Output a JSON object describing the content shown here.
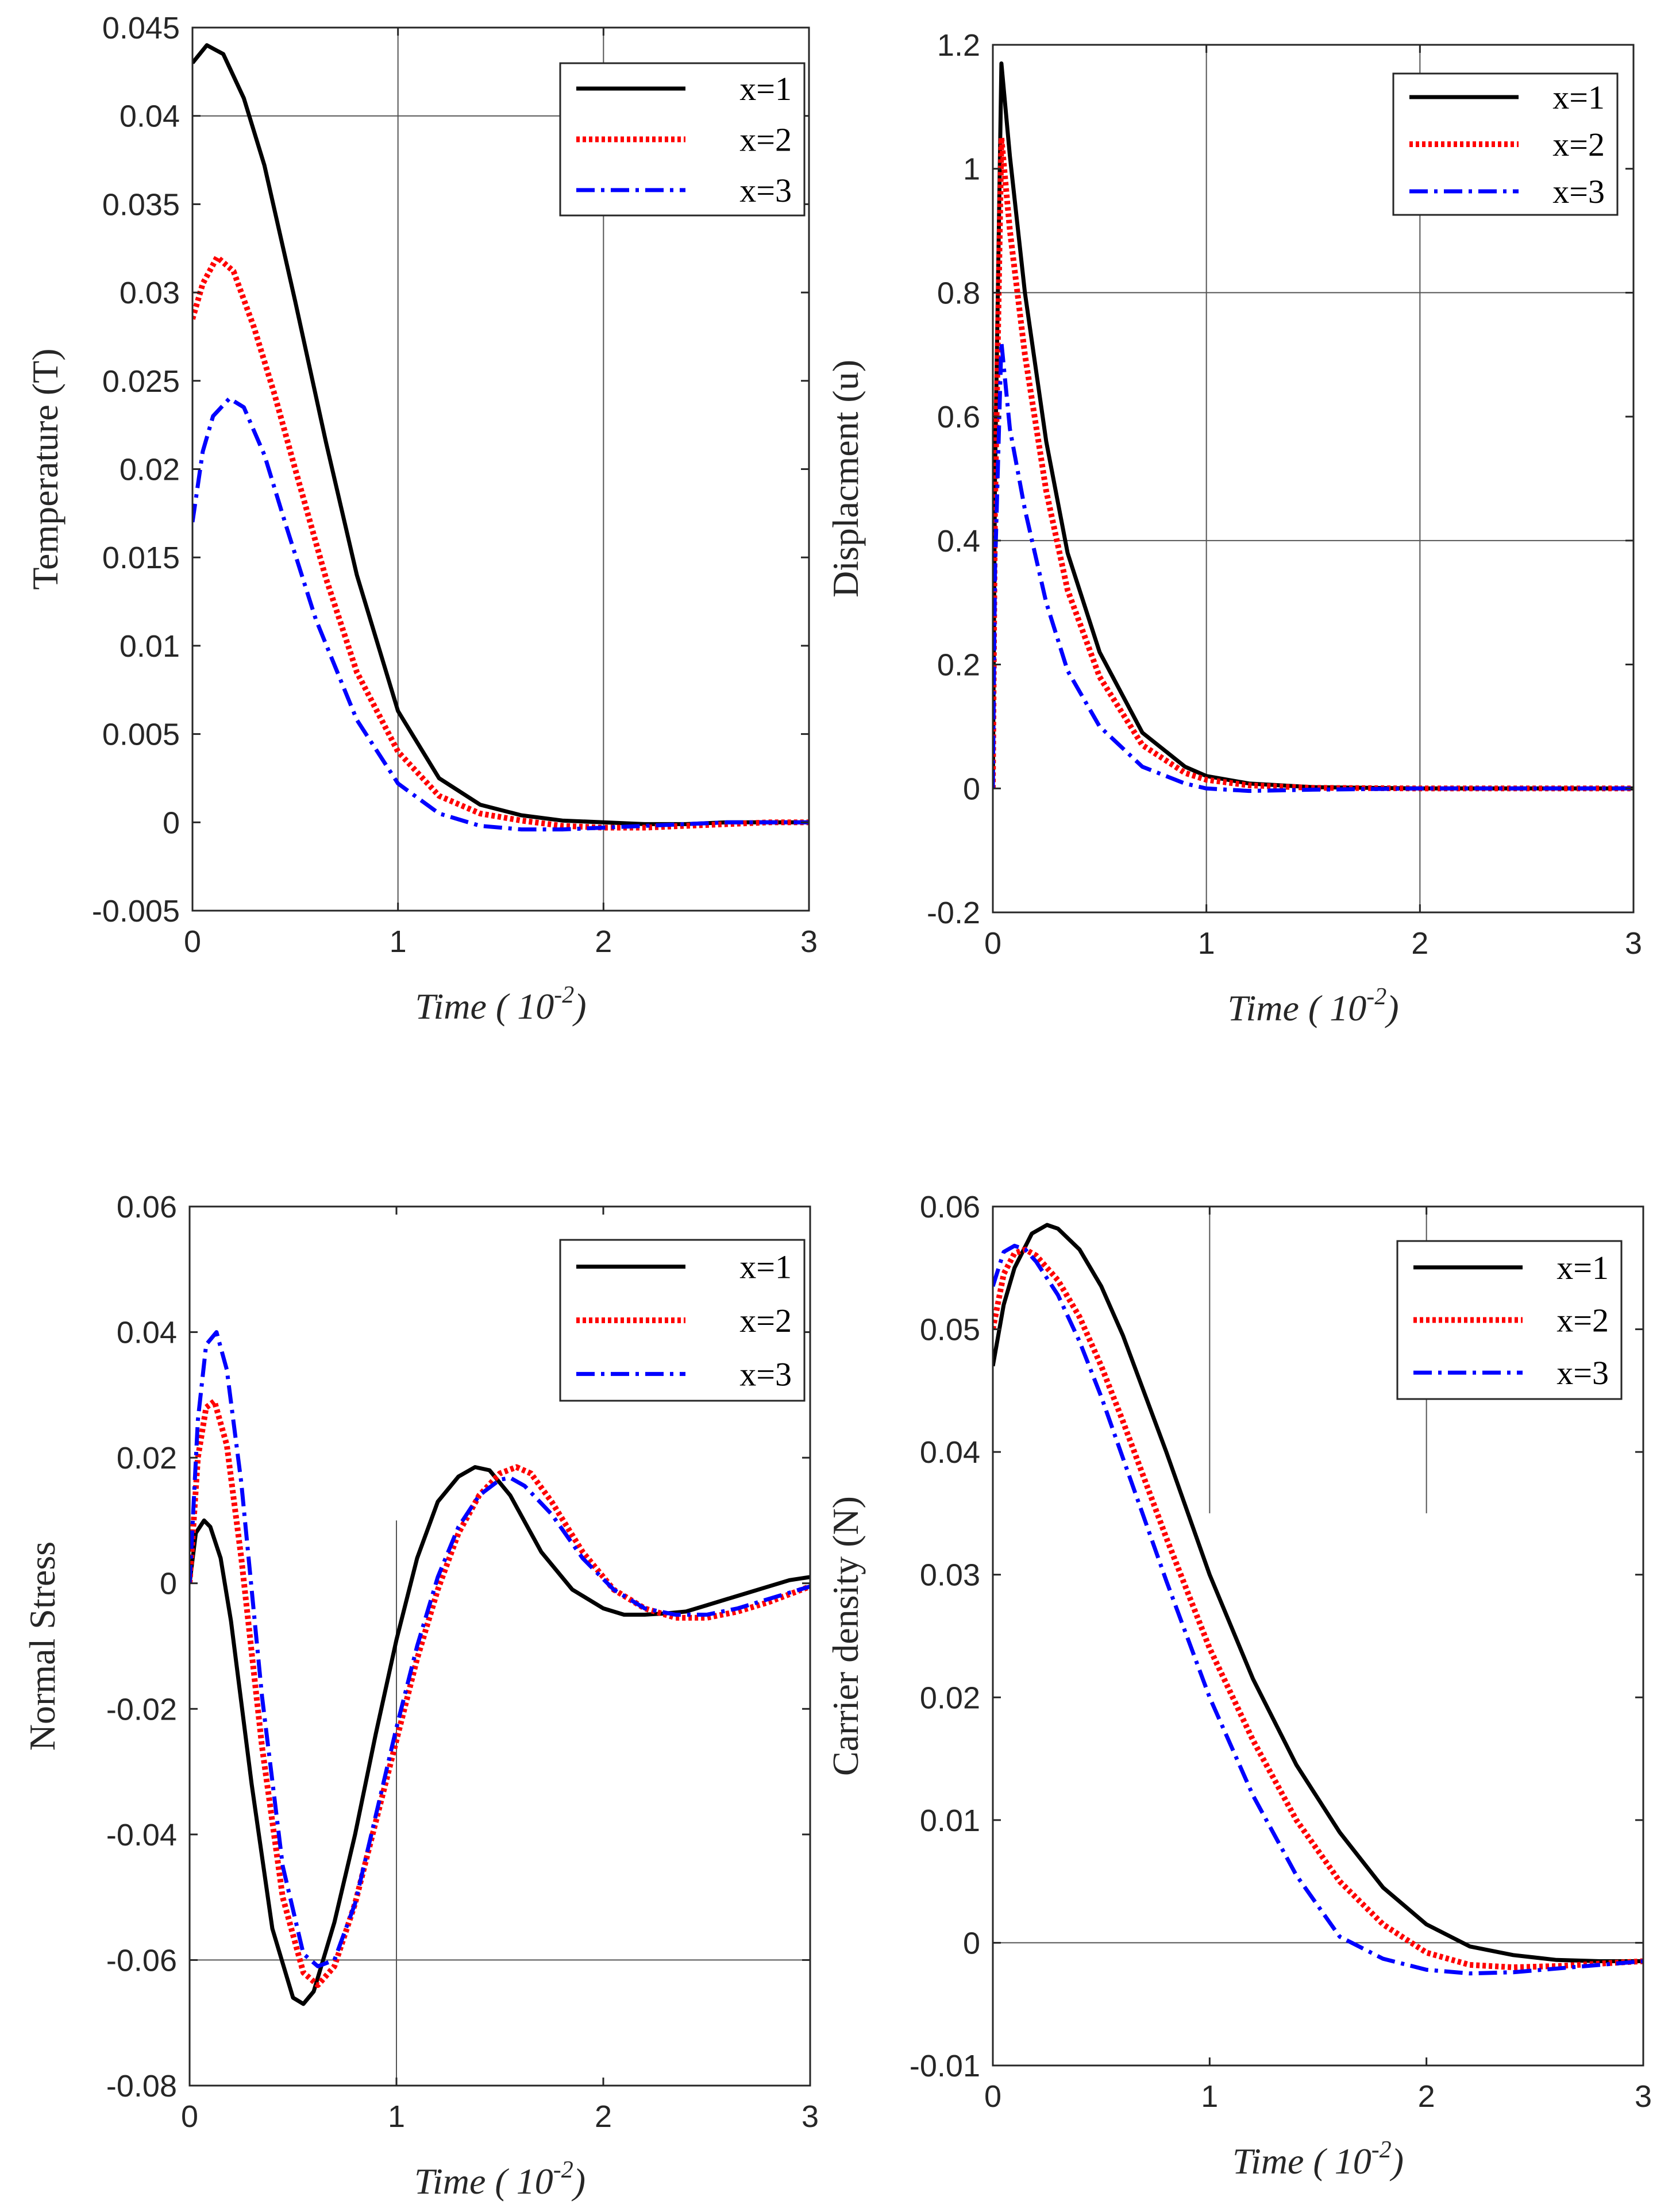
{
  "chart_data": [
    {
      "type": "line",
      "ylabel": "Temperature (T)",
      "xlabel": {
        "main": "Time ( 10",
        "sup": "-2",
        "tail": ")"
      },
      "xlim": [
        0,
        3
      ],
      "ylim": [
        -0.005,
        0.045
      ],
      "xticks": [
        0,
        1,
        2,
        3
      ],
      "xtick_labels": [
        "0",
        "1",
        "2",
        "3"
      ],
      "yticks": [
        -0.005,
        0,
        0.005,
        0.01,
        0.015,
        0.02,
        0.025,
        0.03,
        0.035,
        0.04,
        0.045
      ],
      "ytick_labels": [
        "-0.005",
        "0",
        "0.005",
        "0.01",
        "0.015",
        "0.02",
        "0.025",
        "0.03",
        "0.035",
        "0.04",
        "0.045"
      ],
      "grid": {
        "x": [
          1,
          2
        ],
        "y": [
          0.04
        ]
      },
      "legend": "top-right",
      "series": [
        {
          "name": "x=1",
          "color": "#000000",
          "style": "solid",
          "x": [
            0,
            0.07,
            0.15,
            0.25,
            0.35,
            0.5,
            0.65,
            0.8,
            1.0,
            1.2,
            1.4,
            1.6,
            1.8,
            2.0,
            2.2,
            2.4,
            2.6,
            2.8,
            3.0
          ],
          "y": [
            0.043,
            0.044,
            0.0435,
            0.041,
            0.0372,
            0.0295,
            0.0215,
            0.014,
            0.0063,
            0.0025,
            0.001,
            0.0004,
            0.0001,
            0.0,
            -0.0001,
            -0.0001,
            0.0,
            0.0,
            0.0
          ]
        },
        {
          "name": "x=2",
          "color": "#ff0000",
          "style": "dotted",
          "x": [
            0,
            0.05,
            0.12,
            0.2,
            0.3,
            0.4,
            0.5,
            0.65,
            0.8,
            1.0,
            1.2,
            1.4,
            1.6,
            1.8,
            2.0,
            2.2,
            2.4,
            2.6,
            2.8,
            3.0
          ],
          "y": [
            0.0285,
            0.0305,
            0.032,
            0.0312,
            0.028,
            0.0242,
            0.02,
            0.0138,
            0.0085,
            0.004,
            0.0015,
            0.0005,
            0.0001,
            -0.0002,
            -0.0003,
            -0.0003,
            -0.0002,
            -0.0001,
            0.0,
            0.0
          ]
        },
        {
          "name": "x=3",
          "color": "#0000ff",
          "style": "dashdot",
          "x": [
            0,
            0.05,
            0.1,
            0.18,
            0.25,
            0.35,
            0.45,
            0.6,
            0.8,
            1.0,
            1.2,
            1.4,
            1.6,
            1.8,
            2.0,
            2.2,
            2.4,
            2.6,
            2.8,
            3.0
          ],
          "y": [
            0.017,
            0.021,
            0.023,
            0.024,
            0.0235,
            0.0208,
            0.017,
            0.0115,
            0.0058,
            0.0022,
            0.0005,
            -0.0002,
            -0.0004,
            -0.0004,
            -0.0003,
            -0.0002,
            -0.0001,
            0.0,
            0.0,
            0.0
          ]
        }
      ]
    },
    {
      "type": "line",
      "ylabel": "Displacment (u)",
      "xlabel": {
        "main": "Time ( 10",
        "sup": "-2",
        "tail": ")"
      },
      "xlim": [
        0,
        3
      ],
      "ylim": [
        -0.2,
        1.2
      ],
      "xticks": [
        0,
        1,
        2,
        3
      ],
      "xtick_labels": [
        "0",
        "1",
        "2",
        "3"
      ],
      "yticks": [
        -0.2,
        0,
        0.2,
        0.4,
        0.6,
        0.8,
        1,
        1.2
      ],
      "ytick_labels": [
        "-0.2",
        "0",
        "0.2",
        "0.4",
        "0.6",
        "0.8",
        "1",
        "1.2"
      ],
      "grid": {
        "x": [
          1,
          2
        ],
        "y": [
          0.8,
          0.4
        ]
      },
      "legend": "top-right",
      "series": [
        {
          "name": "x=1",
          "color": "#000000",
          "style": "solid",
          "x": [
            0,
            0.01,
            0.04,
            0.08,
            0.15,
            0.25,
            0.35,
            0.5,
            0.7,
            0.9,
            1.0,
            1.2,
            1.5,
            2.0,
            3.0
          ],
          "y": [
            0,
            0.5,
            1.17,
            1.02,
            0.8,
            0.56,
            0.38,
            0.22,
            0.09,
            0.035,
            0.02,
            0.008,
            0.002,
            0.0,
            0.0
          ]
        },
        {
          "name": "x=2",
          "color": "#ff0000",
          "style": "dotted",
          "x": [
            0,
            0.01,
            0.04,
            0.08,
            0.15,
            0.25,
            0.35,
            0.5,
            0.7,
            0.9,
            1.0,
            1.2,
            1.5,
            2.0,
            3.0
          ],
          "y": [
            0,
            0.45,
            1.05,
            0.9,
            0.7,
            0.48,
            0.32,
            0.18,
            0.07,
            0.025,
            0.014,
            0.005,
            0.001,
            0.0,
            0.0
          ]
        },
        {
          "name": "x=3",
          "color": "#0000ff",
          "style": "dashdot",
          "x": [
            0,
            0.01,
            0.04,
            0.08,
            0.15,
            0.25,
            0.35,
            0.5,
            0.7,
            0.9,
            1.0,
            1.2,
            1.5,
            2.0,
            3.0
          ],
          "y": [
            0,
            0.35,
            0.72,
            0.58,
            0.45,
            0.3,
            0.19,
            0.1,
            0.035,
            0.008,
            0.0,
            -0.004,
            -0.002,
            0.0,
            0.0
          ]
        }
      ]
    },
    {
      "type": "line",
      "ylabel": "Normal Stress",
      "xlabel": {
        "main": "Time ( 10",
        "sup": "-2",
        "tail": ")"
      },
      "xlim": [
        0,
        3
      ],
      "ylim": [
        -0.08,
        0.06
      ],
      "xticks": [
        0,
        1,
        2,
        3
      ],
      "xtick_labels": [
        "0",
        "1",
        "2",
        "3"
      ],
      "yticks": [
        -0.08,
        -0.06,
        -0.04,
        -0.02,
        0,
        0.02,
        0.04,
        0.06
      ],
      "ytick_labels": [
        "-0.08",
        "-0.06",
        "-0.04",
        "-0.02",
        "0",
        "0.02",
        "0.04",
        "0.06"
      ],
      "grid": {
        "x": [
          1
        ],
        "y": [
          -0.06
        ],
        "xfrom": -0.08,
        "xto": 0.01
      },
      "legend": "top-right",
      "series": [
        {
          "name": "x=1",
          "color": "#000000",
          "style": "solid",
          "x": [
            0,
            0.03,
            0.07,
            0.1,
            0.15,
            0.2,
            0.3,
            0.4,
            0.5,
            0.55,
            0.6,
            0.7,
            0.8,
            0.9,
            1.0,
            1.1,
            1.2,
            1.3,
            1.38,
            1.45,
            1.55,
            1.7,
            1.85,
            2.0,
            2.1,
            2.2,
            2.3,
            2.4,
            2.5,
            2.6,
            2.7,
            2.8,
            2.9,
            3.0
          ],
          "y": [
            0.0,
            0.008,
            0.01,
            0.009,
            0.004,
            -0.006,
            -0.032,
            -0.055,
            -0.066,
            -0.067,
            -0.065,
            -0.054,
            -0.04,
            -0.024,
            -0.009,
            0.004,
            0.013,
            0.017,
            0.0185,
            0.018,
            0.014,
            0.005,
            -0.001,
            -0.004,
            -0.005,
            -0.005,
            -0.0048,
            -0.0045,
            -0.0035,
            -0.0025,
            -0.0015,
            -0.0005,
            0.0005,
            0.001
          ]
        },
        {
          "name": "x=2",
          "color": "#ff0000",
          "style": "dotted",
          "x": [
            0,
            0.04,
            0.08,
            0.12,
            0.18,
            0.25,
            0.35,
            0.45,
            0.55,
            0.62,
            0.7,
            0.8,
            0.9,
            1.0,
            1.1,
            1.2,
            1.3,
            1.4,
            1.5,
            1.58,
            1.65,
            1.75,
            1.9,
            2.05,
            2.2,
            2.35,
            2.5,
            2.65,
            2.8,
            3.0
          ],
          "y": [
            0.0,
            0.02,
            0.028,
            0.029,
            0.022,
            0.004,
            -0.026,
            -0.05,
            -0.062,
            -0.064,
            -0.061,
            -0.051,
            -0.038,
            -0.025,
            -0.012,
            -0.001,
            0.008,
            0.014,
            0.0175,
            0.0185,
            0.0175,
            0.013,
            0.005,
            -0.001,
            -0.004,
            -0.0055,
            -0.0055,
            -0.0045,
            -0.003,
            -0.0005
          ]
        },
        {
          "name": "x=3",
          "color": "#0000ff",
          "style": "dashdot",
          "x": [
            0,
            0.04,
            0.08,
            0.13,
            0.18,
            0.25,
            0.35,
            0.45,
            0.55,
            0.62,
            0.7,
            0.8,
            0.9,
            1.0,
            1.1,
            1.2,
            1.3,
            1.4,
            1.5,
            1.55,
            1.62,
            1.75,
            1.9,
            2.05,
            2.2,
            2.35,
            2.5,
            2.65,
            2.8,
            3.0
          ],
          "y": [
            0.0,
            0.026,
            0.038,
            0.04,
            0.034,
            0.016,
            -0.018,
            -0.045,
            -0.059,
            -0.061,
            -0.06,
            -0.051,
            -0.037,
            -0.023,
            -0.01,
            0.001,
            0.009,
            0.014,
            0.0165,
            0.0168,
            0.0155,
            0.011,
            0.004,
            -0.001,
            -0.004,
            -0.005,
            -0.005,
            -0.004,
            -0.0025,
            -0.0005
          ]
        }
      ]
    },
    {
      "type": "line",
      "ylabel": "Carrier density (N)",
      "xlabel": {
        "main": "Time ( 10",
        "sup": "-2",
        "tail": ")"
      },
      "xlim": [
        0,
        3
      ],
      "ylim": [
        -0.01,
        0.06
      ],
      "xticks": [
        0,
        1,
        2,
        3
      ],
      "xtick_labels": [
        "0",
        "1",
        "2",
        "3"
      ],
      "yticks": [
        -0.01,
        0,
        0.01,
        0.02,
        0.03,
        0.04,
        0.05,
        0.06
      ],
      "ytick_labels": [
        "-0.01",
        "0",
        "0.01",
        "0.02",
        "0.03",
        "0.04",
        "0.05",
        "0.06"
      ],
      "grid": {
        "x": [
          1,
          2
        ],
        "y": [
          0
        ],
        "xfrom": 0.035,
        "xto": 0.06
      },
      "legend": "top-right",
      "series": [
        {
          "name": "x=1",
          "color": "#000000",
          "style": "solid",
          "x": [
            0,
            0.05,
            0.1,
            0.18,
            0.25,
            0.3,
            0.4,
            0.5,
            0.6,
            0.8,
            1.0,
            1.2,
            1.4,
            1.6,
            1.8,
            2.0,
            2.2,
            2.4,
            2.6,
            2.8,
            3.0
          ],
          "y": [
            0.047,
            0.052,
            0.055,
            0.0578,
            0.0585,
            0.0582,
            0.0565,
            0.0535,
            0.0495,
            0.04,
            0.03,
            0.0215,
            0.0145,
            0.009,
            0.0045,
            0.0015,
            -0.0003,
            -0.001,
            -0.0014,
            -0.0015,
            -0.0015
          ]
        },
        {
          "name": "x=2",
          "color": "#ff0000",
          "style": "dotted",
          "x": [
            0,
            0.05,
            0.1,
            0.15,
            0.2,
            0.3,
            0.4,
            0.5,
            0.6,
            0.8,
            1.0,
            1.2,
            1.4,
            1.6,
            1.8,
            2.0,
            2.2,
            2.4,
            2.6,
            2.8,
            3.0
          ],
          "y": [
            0.05,
            0.0545,
            0.0562,
            0.0565,
            0.056,
            0.054,
            0.051,
            0.047,
            0.0425,
            0.033,
            0.024,
            0.0165,
            0.01,
            0.005,
            0.0015,
            -0.0008,
            -0.0018,
            -0.002,
            -0.0019,
            -0.0017,
            -0.0015
          ]
        },
        {
          "name": "x=3",
          "color": "#0000ff",
          "style": "dashdot",
          "x": [
            0,
            0.05,
            0.1,
            0.15,
            0.2,
            0.3,
            0.4,
            0.5,
            0.6,
            0.8,
            1.0,
            1.2,
            1.4,
            1.6,
            1.8,
            2.0,
            2.2,
            2.4,
            2.6,
            2.8,
            3.0
          ],
          "y": [
            0.0535,
            0.0563,
            0.0568,
            0.0565,
            0.0555,
            0.0528,
            0.049,
            0.0445,
            0.0395,
            0.0295,
            0.02,
            0.012,
            0.0055,
            0.0005,
            -0.0013,
            -0.0022,
            -0.0025,
            -0.0024,
            -0.0021,
            -0.0018,
            -0.0015
          ]
        }
      ]
    }
  ]
}
